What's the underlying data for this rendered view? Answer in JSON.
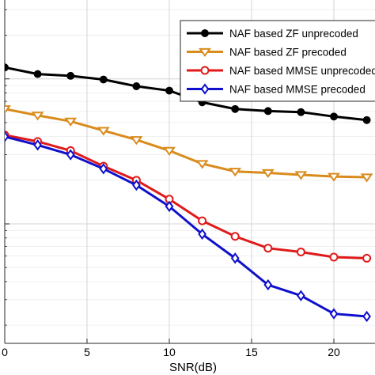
{
  "chart_data": {
    "type": "line",
    "title": "",
    "xlabel": "SNR(dB)",
    "ylabel": "",
    "xlim": [
      0,
      22.5
    ],
    "y_scale": "log",
    "ylim": [
      0.0015,
      0.35
    ],
    "grid": true,
    "x_ticks": [
      {
        "value": 0,
        "label": "0"
      },
      {
        "value": 5,
        "label": "5"
      },
      {
        "value": 10,
        "label": "10"
      },
      {
        "value": 15,
        "label": "15"
      },
      {
        "value": 20,
        "label": "20"
      }
    ],
    "legend_position": "top-right",
    "series": [
      {
        "name": "NAF based ZF unprecoded",
        "color": "#000000",
        "marker": "circle",
        "x": [
          0,
          2,
          4,
          6,
          8,
          10,
          12,
          14,
          16,
          18,
          20,
          22
        ],
        "values": [
          0.12,
          0.108,
          0.105,
          0.099,
          0.089,
          0.083,
          0.069,
          0.062,
          0.06,
          0.059,
          0.055,
          0.052
        ]
      },
      {
        "name": "NAF based ZF precoded",
        "color": "#d98b1c",
        "marker": "triangle-down",
        "x": [
          0,
          2,
          4,
          6,
          8,
          10,
          12,
          14,
          16,
          18,
          20,
          22
        ],
        "values": [
          0.062,
          0.056,
          0.051,
          0.044,
          0.038,
          0.032,
          0.026,
          0.023,
          0.0225,
          0.0218,
          0.0212,
          0.021
        ]
      },
      {
        "name": "NAF based MMSE unprecoded",
        "color": "#e01a1a",
        "marker": "circle-open",
        "x": [
          0,
          2,
          4,
          6,
          8,
          10,
          12,
          14,
          16,
          18,
          20,
          22
        ],
        "values": [
          0.041,
          0.037,
          0.032,
          0.025,
          0.02,
          0.0148,
          0.0105,
          0.0082,
          0.0068,
          0.0064,
          0.0059,
          0.0058
        ]
      },
      {
        "name": "NAF based MMSE precoded",
        "color": "#1010cc",
        "marker": "diamond-open",
        "x": [
          0,
          2,
          4,
          6,
          8,
          10,
          12,
          14,
          16,
          18,
          20,
          22
        ],
        "values": [
          0.04,
          0.035,
          0.03,
          0.024,
          0.0185,
          0.0132,
          0.0085,
          0.0058,
          0.0038,
          0.0032,
          0.0024,
          0.0023
        ]
      }
    ]
  }
}
